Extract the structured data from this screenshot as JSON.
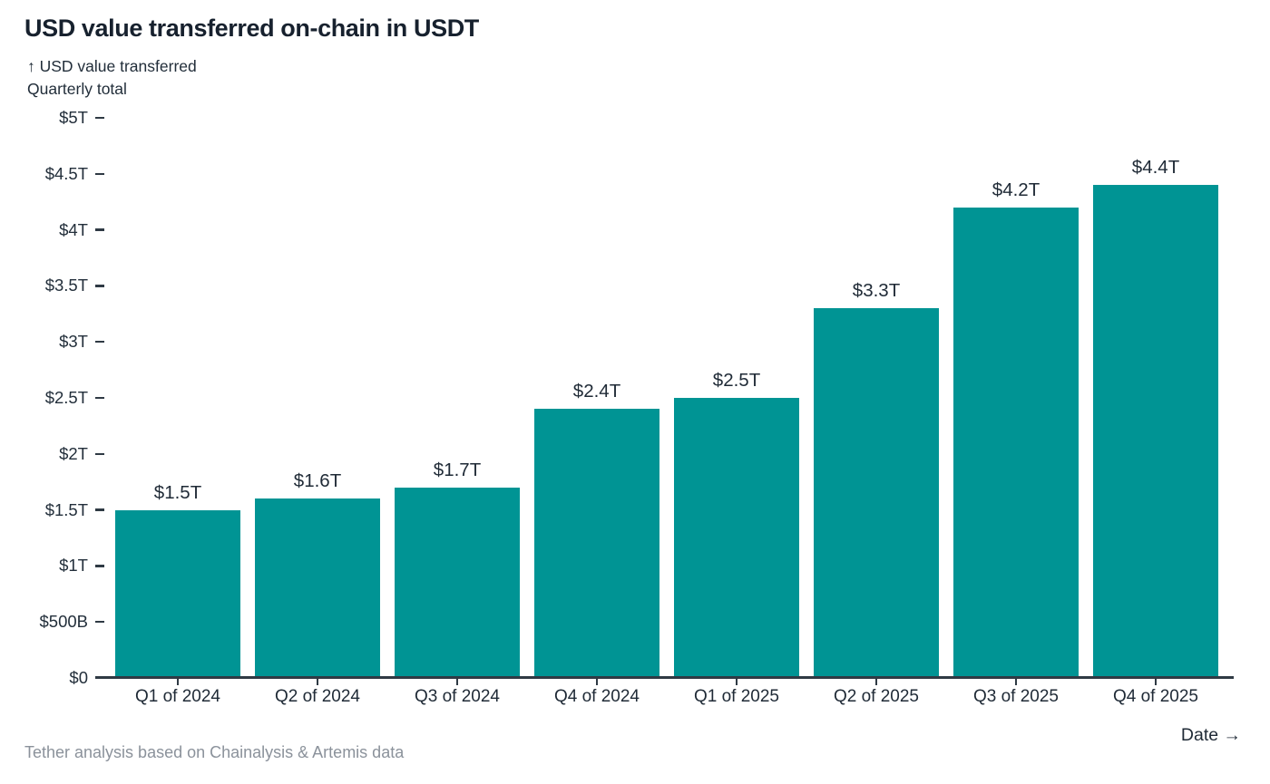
{
  "header": {
    "title": "USD value transferred on-chain in USDT",
    "y_axis_label_line1": "↑ USD value transferred",
    "y_axis_label_line2": "Quarterly total"
  },
  "footer": {
    "source_note": "Tether analysis based on Chainalysis & Artemis data"
  },
  "colors": {
    "bar": "#009494",
    "axis": "#2f3a44",
    "text_dark": "#1f2a36",
    "text_muted": "#8b929b"
  },
  "chart_data": {
    "type": "bar",
    "title": "USD value transferred on-chain in USDT",
    "subtitle": "Quarterly total",
    "xlabel": "Date →",
    "ylabel": "USD value transferred",
    "categories": [
      "Q1 of 2024",
      "Q2 of 2024",
      "Q3 of 2024",
      "Q4 of 2024",
      "Q1 of 2025",
      "Q2 of 2025",
      "Q3 of 2025",
      "Q4 of 2025"
    ],
    "values": [
      1.5,
      1.6,
      1.7,
      2.4,
      2.5,
      3.3,
      4.2,
      4.4
    ],
    "bar_labels": [
      "$1.5T",
      "$1.6T",
      "$1.7T",
      "$2.4T",
      "$2.5T",
      "$3.3T",
      "$4.2T",
      "$4.4T"
    ],
    "units": "trillions of USD",
    "ylim": [
      0,
      5
    ],
    "y_ticks": [
      {
        "value": 0,
        "label": "$0"
      },
      {
        "value": 0.5,
        "label": "$500B"
      },
      {
        "value": 1,
        "label": "$1T"
      },
      {
        "value": 1.5,
        "label": "$1.5T"
      },
      {
        "value": 2,
        "label": "$2T"
      },
      {
        "value": 2.5,
        "label": "$2.5T"
      },
      {
        "value": 3,
        "label": "$3T"
      },
      {
        "value": 3.5,
        "label": "$3.5T"
      },
      {
        "value": 4,
        "label": "$4T"
      },
      {
        "value": 4.5,
        "label": "$4.5T"
      },
      {
        "value": 5,
        "label": "$5T"
      }
    ],
    "grid": false,
    "legend": null
  }
}
